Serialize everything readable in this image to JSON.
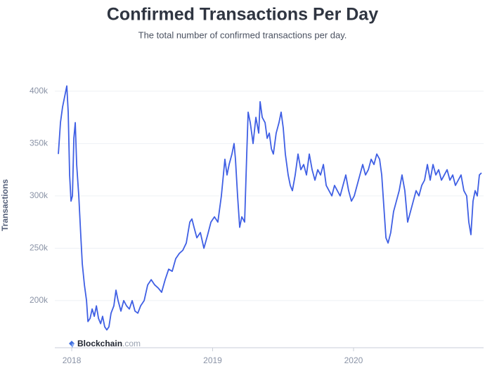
{
  "chart_data": {
    "type": "line",
    "title": "Confirmed Transactions Per Day",
    "subtitle": "The total number of confirmed transactions per day.",
    "y_label": "Transactions",
    "watermark": {
      "brand": "Blockchain",
      "suffix": ".com"
    },
    "xlim": [
      2017.88,
      2020.923
    ],
    "xticks": [
      2018,
      2019,
      2020
    ],
    "ylim": [
      155000,
      420000
    ],
    "yticks": [
      {
        "value": 200000,
        "label": "200k"
      },
      {
        "value": 250000,
        "label": "250k"
      },
      {
        "value": 300000,
        "label": "300k"
      },
      {
        "value": 350000,
        "label": "350k"
      },
      {
        "value": 400000,
        "label": "400k"
      }
    ],
    "grid": true,
    "x": [
      2017.905,
      2017.92,
      2017.935,
      2017.95,
      2017.965,
      2017.975,
      2017.985,
      2017.995,
      2018.005,
      2018.015,
      2018.025,
      2018.035,
      2018.05,
      2018.065,
      2018.075,
      2018.09,
      2018.105,
      2018.115,
      2018.13,
      2018.145,
      2018.16,
      2018.175,
      2018.19,
      2018.205,
      2018.219,
      2018.234,
      2018.249,
      2018.264,
      2018.279,
      2018.299,
      2018.314,
      2018.329,
      2018.349,
      2018.369,
      2018.389,
      2018.409,
      2018.429,
      2018.449,
      2018.469,
      2018.489,
      2018.514,
      2018.539,
      2018.564,
      2018.589,
      2018.614,
      2018.638,
      2018.663,
      2018.688,
      2018.713,
      2018.738,
      2018.763,
      2018.788,
      2018.813,
      2018.838,
      2018.853,
      2018.868,
      2018.888,
      2018.913,
      2018.938,
      2018.963,
      2018.988,
      2019.013,
      2019.037,
      2019.062,
      2019.087,
      2019.102,
      2019.117,
      2019.137,
      2019.152,
      2019.162,
      2019.177,
      2019.192,
      2019.207,
      2019.227,
      2019.242,
      2019.252,
      2019.267,
      2019.287,
      2019.307,
      2019.327,
      2019.337,
      2019.352,
      2019.372,
      2019.387,
      2019.402,
      2019.417,
      2019.431,
      2019.451,
      2019.471,
      2019.486,
      2019.501,
      2019.516,
      2019.536,
      2019.551,
      2019.566,
      2019.586,
      2019.606,
      2019.626,
      2019.646,
      2019.666,
      2019.686,
      2019.706,
      2019.726,
      2019.746,
      2019.766,
      2019.786,
      2019.806,
      2019.826,
      2019.846,
      2019.865,
      2019.885,
      2019.905,
      2019.925,
      2019.945,
      2019.965,
      2019.985,
      2020.005,
      2020.025,
      2020.045,
      2020.065,
      2020.085,
      2020.105,
      2020.125,
      2020.145,
      2020.165,
      2020.185,
      2020.2,
      2020.215,
      2020.23,
      2020.245,
      2020.264,
      2020.284,
      2020.304,
      2020.324,
      2020.344,
      2020.364,
      2020.384,
      2020.404,
      2020.424,
      2020.444,
      2020.464,
      2020.484,
      2020.504,
      2020.524,
      2020.544,
      2020.564,
      2020.584,
      2020.604,
      2020.624,
      2020.644,
      2020.664,
      2020.684,
      2020.704,
      2020.723,
      2020.743,
      2020.763,
      2020.783,
      2020.803,
      2020.818,
      2020.833,
      2020.848,
      2020.863,
      2020.878,
      2020.893,
      2020.908
    ],
    "series": [
      {
        "name": "Transactions",
        "color": "#3f5fe4",
        "values": [
          340000,
          370000,
          385000,
          395000,
          405000,
          380000,
          320000,
          295000,
          300000,
          355000,
          370000,
          330000,
          300000,
          260000,
          235000,
          215000,
          200000,
          180000,
          183000,
          192000,
          185000,
          195000,
          183000,
          178000,
          185000,
          175000,
          172000,
          175000,
          188000,
          195000,
          210000,
          200000,
          190000,
          200000,
          195000,
          192000,
          200000,
          190000,
          188000,
          195000,
          200000,
          215000,
          220000,
          215000,
          212000,
          208000,
          220000,
          230000,
          228000,
          240000,
          245000,
          248000,
          255000,
          275000,
          278000,
          270000,
          260000,
          265000,
          250000,
          262000,
          275000,
          280000,
          275000,
          300000,
          335000,
          320000,
          330000,
          340000,
          350000,
          335000,
          300000,
          270000,
          280000,
          275000,
          340000,
          380000,
          370000,
          350000,
          375000,
          360000,
          390000,
          375000,
          370000,
          355000,
          360000,
          345000,
          340000,
          360000,
          370000,
          380000,
          365000,
          340000,
          320000,
          310000,
          305000,
          320000,
          340000,
          325000,
          330000,
          320000,
          340000,
          325000,
          315000,
          325000,
          320000,
          330000,
          310000,
          305000,
          300000,
          310000,
          305000,
          300000,
          310000,
          320000,
          305000,
          295000,
          300000,
          310000,
          320000,
          330000,
          320000,
          325000,
          335000,
          330000,
          340000,
          335000,
          320000,
          290000,
          260000,
          255000,
          265000,
          285000,
          295000,
          305000,
          320000,
          305000,
          275000,
          285000,
          295000,
          305000,
          300000,
          310000,
          315000,
          330000,
          315000,
          330000,
          320000,
          325000,
          315000,
          320000,
          325000,
          315000,
          320000,
          310000,
          315000,
          320000,
          305000,
          300000,
          275000,
          263000,
          295000,
          305000,
          300000,
          320000,
          322000
        ]
      }
    ]
  }
}
